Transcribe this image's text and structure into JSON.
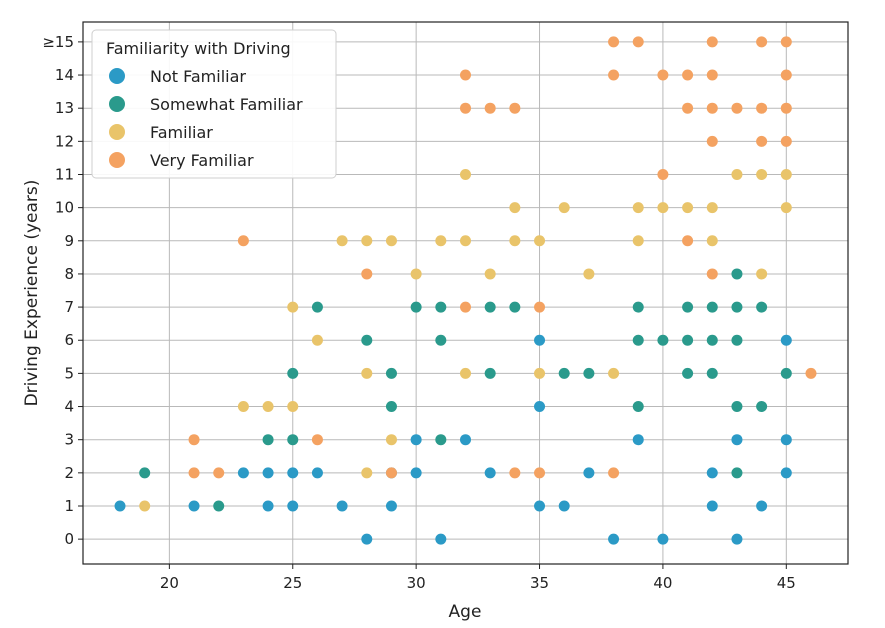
{
  "chart_data": {
    "type": "scatter",
    "title": "",
    "xlabel": "Age",
    "ylabel": "Driving Experience (years)",
    "xlim": [
      16.5,
      47.5
    ],
    "ylim": [
      -0.75,
      15.6
    ],
    "xticks": [
      20,
      25,
      30,
      35,
      40,
      45
    ],
    "yticks": [
      {
        "value": 0,
        "label": "0"
      },
      {
        "value": 1,
        "label": "1"
      },
      {
        "value": 2,
        "label": "2"
      },
      {
        "value": 3,
        "label": "3"
      },
      {
        "value": 4,
        "label": "4"
      },
      {
        "value": 5,
        "label": "5"
      },
      {
        "value": 6,
        "label": "6"
      },
      {
        "value": 7,
        "label": "7"
      },
      {
        "value": 8,
        "label": "8"
      },
      {
        "value": 9,
        "label": "9"
      },
      {
        "value": 10,
        "label": "10"
      },
      {
        "value": 11,
        "label": "11"
      },
      {
        "value": 12,
        "label": "12"
      },
      {
        "value": 13,
        "label": "13"
      },
      {
        "value": 14,
        "label": "14"
      },
      {
        "value": 15,
        "label": "≥15"
      }
    ],
    "grid": true,
    "legend": {
      "title": "Familiarity with Driving",
      "placement": "top-left"
    },
    "series": [
      {
        "name": "Not Familiar",
        "color": "#2b9ac6",
        "points": [
          [
            18,
            1
          ],
          [
            21,
            1
          ],
          [
            23,
            2
          ],
          [
            24,
            1
          ],
          [
            24,
            2
          ],
          [
            25,
            1
          ],
          [
            25,
            2
          ],
          [
            26,
            2
          ],
          [
            27,
            1
          ],
          [
            28,
            0
          ],
          [
            29,
            1
          ],
          [
            29,
            2
          ],
          [
            30,
            2
          ],
          [
            30,
            3
          ],
          [
            31,
            0
          ],
          [
            32,
            3
          ],
          [
            33,
            2
          ],
          [
            35,
            1
          ],
          [
            35,
            4
          ],
          [
            35,
            6
          ],
          [
            36,
            1
          ],
          [
            37,
            2
          ],
          [
            38,
            0
          ],
          [
            39,
            3
          ],
          [
            40,
            0
          ],
          [
            42,
            1
          ],
          [
            42,
            2
          ],
          [
            43,
            0
          ],
          [
            43,
            3
          ],
          [
            44,
            1
          ],
          [
            45,
            2
          ],
          [
            45,
            3
          ],
          [
            45,
            6
          ]
        ]
      },
      {
        "name": "Somewhat Familiar",
        "color": "#2a9a8c",
        "points": [
          [
            19,
            2
          ],
          [
            22,
            1
          ],
          [
            24,
            3
          ],
          [
            25,
            3
          ],
          [
            25,
            5
          ],
          [
            26,
            7
          ],
          [
            28,
            6
          ],
          [
            29,
            4
          ],
          [
            29,
            5
          ],
          [
            30,
            7
          ],
          [
            31,
            3
          ],
          [
            31,
            6
          ],
          [
            31,
            7
          ],
          [
            33,
            5
          ],
          [
            33,
            7
          ],
          [
            34,
            7
          ],
          [
            36,
            5
          ],
          [
            37,
            5
          ],
          [
            39,
            4
          ],
          [
            39,
            6
          ],
          [
            39,
            7
          ],
          [
            40,
            6
          ],
          [
            41,
            5
          ],
          [
            41,
            6
          ],
          [
            41,
            7
          ],
          [
            42,
            5
          ],
          [
            42,
            6
          ],
          [
            42,
            7
          ],
          [
            43,
            2
          ],
          [
            43,
            4
          ],
          [
            43,
            6
          ],
          [
            43,
            7
          ],
          [
            43,
            8
          ],
          [
            44,
            4
          ],
          [
            44,
            7
          ],
          [
            45,
            5
          ]
        ]
      },
      {
        "name": "Familiar",
        "color": "#e9c46a",
        "points": [
          [
            19,
            1
          ],
          [
            23,
            4
          ],
          [
            24,
            4
          ],
          [
            25,
            4
          ],
          [
            25,
            7
          ],
          [
            26,
            6
          ],
          [
            27,
            9
          ],
          [
            28,
            2
          ],
          [
            28,
            5
          ],
          [
            28,
            9
          ],
          [
            29,
            3
          ],
          [
            29,
            9
          ],
          [
            30,
            8
          ],
          [
            31,
            9
          ],
          [
            32,
            5
          ],
          [
            32,
            9
          ],
          [
            32,
            11
          ],
          [
            33,
            8
          ],
          [
            34,
            9
          ],
          [
            34,
            10
          ],
          [
            35,
            5
          ],
          [
            35,
            9
          ],
          [
            36,
            10
          ],
          [
            37,
            8
          ],
          [
            38,
            5
          ],
          [
            39,
            9
          ],
          [
            39,
            10
          ],
          [
            40,
            10
          ],
          [
            41,
            10
          ],
          [
            42,
            9
          ],
          [
            42,
            10
          ],
          [
            43,
            11
          ],
          [
            44,
            8
          ],
          [
            44,
            11
          ],
          [
            45,
            10
          ],
          [
            45,
            11
          ]
        ]
      },
      {
        "name": "Very Familiar",
        "color": "#f4a261",
        "points": [
          [
            21,
            2
          ],
          [
            21,
            3
          ],
          [
            22,
            2
          ],
          [
            23,
            9
          ],
          [
            26,
            3
          ],
          [
            28,
            8
          ],
          [
            29,
            2
          ],
          [
            32,
            7
          ],
          [
            32,
            13
          ],
          [
            32,
            14
          ],
          [
            33,
            13
          ],
          [
            34,
            2
          ],
          [
            34,
            13
          ],
          [
            35,
            2
          ],
          [
            35,
            7
          ],
          [
            38,
            2
          ],
          [
            38,
            14
          ],
          [
            38,
            15
          ],
          [
            39,
            15
          ],
          [
            40,
            11
          ],
          [
            40,
            14
          ],
          [
            41,
            9
          ],
          [
            41,
            13
          ],
          [
            41,
            14
          ],
          [
            42,
            8
          ],
          [
            42,
            12
          ],
          [
            42,
            13
          ],
          [
            42,
            14
          ],
          [
            42,
            15
          ],
          [
            43,
            13
          ],
          [
            44,
            12
          ],
          [
            44,
            13
          ],
          [
            44,
            15
          ],
          [
            45,
            12
          ],
          [
            45,
            13
          ],
          [
            45,
            14
          ],
          [
            45,
            15
          ],
          [
            46,
            5
          ]
        ]
      }
    ]
  }
}
